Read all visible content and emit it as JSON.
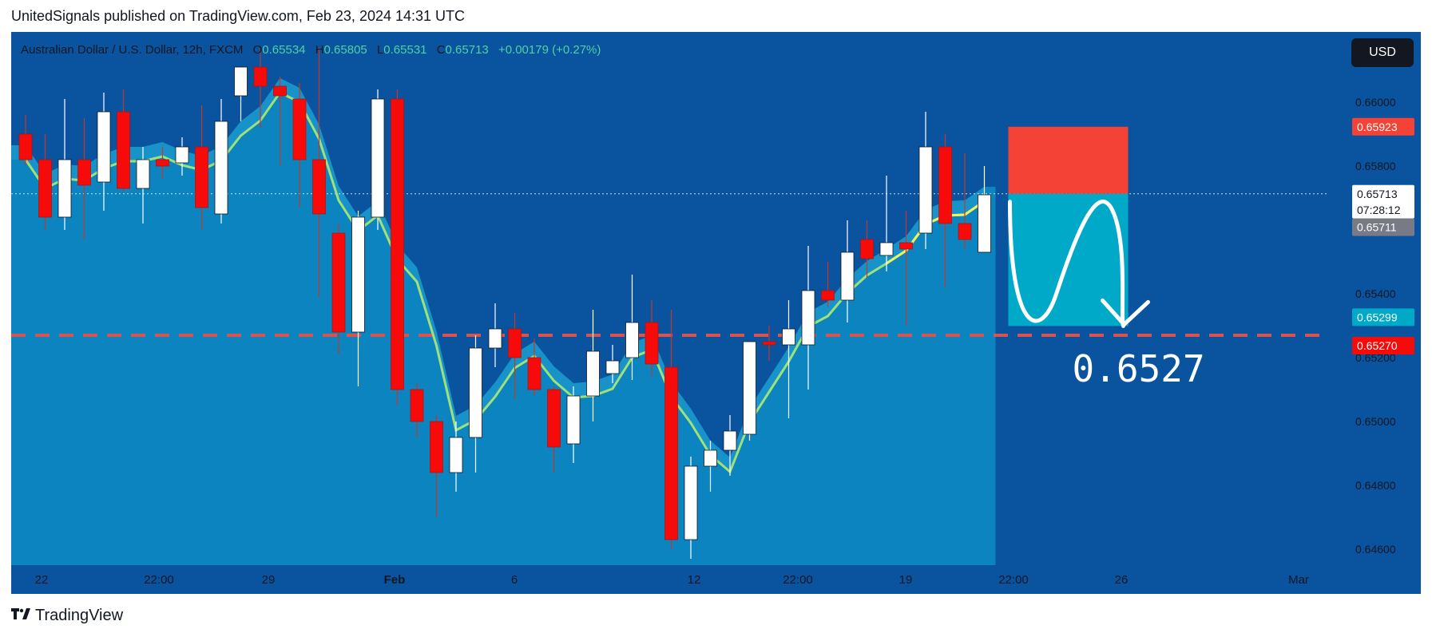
{
  "header": {
    "text": "UnitedSignals published on TradingView.com, Feb 23, 2024 14:31 UTC"
  },
  "legend": {
    "symbol": "Australian Dollar / U.S. Dollar, 12h, FXCM",
    "o_label": "O",
    "o_value": "0.65534",
    "h_label": "H",
    "h_value": "0.65805",
    "l_label": "L",
    "l_value": "0.65531",
    "c_label": "C",
    "c_value": "0.65713",
    "change": "+0.00179 (+0.27%)"
  },
  "currency_badge": "USD",
  "footer": {
    "brand": "TradingView"
  },
  "annotation": {
    "target_text": "0.6527"
  },
  "colors": {
    "background": "#0a539e",
    "area_fill": "#0b84bf",
    "band_fill": "#1b97cc",
    "up_candle": "#ffffff",
    "down_candle": "#f70a0a",
    "ma_line": "#9ee07a",
    "ma_line_recent": "#f2f25a",
    "stop_zone": "#f44236",
    "target_zone": "#00a9c8",
    "dashed_level": "#d9534f"
  },
  "chart_data": {
    "type": "candlestick",
    "ylim": [
      0.6455,
      0.6622
    ],
    "y_ticks": [
      "0.66000",
      "0.65800",
      "0.65400",
      "0.65200",
      "0.65000",
      "0.64800",
      "0.64600"
    ],
    "x_ticks": [
      "22",
      "22:00",
      "29",
      "Feb",
      "6",
      "12",
      "22:00",
      "19",
      "22:00",
      "26",
      "Mar"
    ],
    "price_labels": [
      {
        "text": "0.65923",
        "value": 0.65923,
        "color": "#f44236"
      },
      {
        "text": "0.65713",
        "value": 0.65713,
        "color": "#ffffff",
        "sub": "07:28:12"
      },
      {
        "text": "0.65711",
        "value": 0.65711,
        "color": "#787b86"
      },
      {
        "text": "0.65299",
        "value": 0.65299,
        "color": "#00a9c8"
      },
      {
        "text": "0.65270",
        "value": 0.6527,
        "color": "#f70a0a"
      }
    ],
    "current_price": 0.65713,
    "dashed_level": 0.6527,
    "position": {
      "entry": 0.65713,
      "stop": 0.65923,
      "target": 0.65299
    },
    "candles": [
      [
        0.659,
        0.6596,
        0.658,
        0.6582
      ],
      [
        0.6582,
        0.659,
        0.656,
        0.6564
      ],
      [
        0.6564,
        0.6601,
        0.656,
        0.6582
      ],
      [
        0.6582,
        0.6595,
        0.6557,
        0.6574
      ],
      [
        0.6575,
        0.6603,
        0.6566,
        0.6597
      ],
      [
        0.6597,
        0.6604,
        0.6572,
        0.6573
      ],
      [
        0.6573,
        0.6586,
        0.6562,
        0.6582
      ],
      [
        0.6582,
        0.6586,
        0.6576,
        0.658
      ],
      [
        0.6581,
        0.6589,
        0.6577,
        0.6586
      ],
      [
        0.6586,
        0.6599,
        0.656,
        0.6567
      ],
      [
        0.6565,
        0.6601,
        0.6562,
        0.6594
      ],
      [
        0.6602,
        0.661,
        0.6594,
        0.6611
      ],
      [
        0.6611,
        0.6617,
        0.6592,
        0.6605
      ],
      [
        0.6605,
        0.6608,
        0.658,
        0.6602
      ],
      [
        0.6601,
        0.6606,
        0.6567,
        0.6582
      ],
      [
        0.6582,
        0.6617,
        0.6539,
        0.6565
      ],
      [
        0.6559,
        0.6562,
        0.6521,
        0.6528
      ],
      [
        0.6528,
        0.6566,
        0.6511,
        0.6564
      ],
      [
        0.6564,
        0.6604,
        0.656,
        0.6601
      ],
      [
        0.6601,
        0.6604,
        0.6505,
        0.651
      ],
      [
        0.651,
        0.6512,
        0.6495,
        0.65
      ],
      [
        0.65,
        0.6502,
        0.647,
        0.6484
      ],
      [
        0.6484,
        0.65,
        0.6478,
        0.6495
      ],
      [
        0.6495,
        0.6527,
        0.6484,
        0.6523
      ],
      [
        0.6523,
        0.6537,
        0.6517,
        0.6529
      ],
      [
        0.6529,
        0.6534,
        0.6507,
        0.652
      ],
      [
        0.652,
        0.6526,
        0.6508,
        0.651
      ],
      [
        0.651,
        0.6511,
        0.6484,
        0.6492
      ],
      [
        0.6493,
        0.6511,
        0.6487,
        0.6508
      ],
      [
        0.6508,
        0.6535,
        0.65,
        0.6522
      ],
      [
        0.6515,
        0.6524,
        0.6512,
        0.6519
      ],
      [
        0.652,
        0.6546,
        0.6513,
        0.6531
      ],
      [
        0.6531,
        0.6538,
        0.6514,
        0.6518
      ],
      [
        0.6517,
        0.6535,
        0.646,
        0.6463
      ],
      [
        0.6463,
        0.6489,
        0.6457,
        0.6486
      ],
      [
        0.6486,
        0.6494,
        0.6478,
        0.6491
      ],
      [
        0.6491,
        0.6502,
        0.6483,
        0.6497
      ],
      [
        0.6496,
        0.6524,
        0.6494,
        0.6525
      ],
      [
        0.6525,
        0.653,
        0.6519,
        0.6524
      ],
      [
        0.6524,
        0.6538,
        0.6501,
        0.6529
      ],
      [
        0.6524,
        0.6555,
        0.651,
        0.6541
      ],
      [
        0.6541,
        0.655,
        0.6536,
        0.6538
      ],
      [
        0.6538,
        0.6563,
        0.6531,
        0.6553
      ],
      [
        0.6557,
        0.6563,
        0.6545,
        0.6551
      ],
      [
        0.6552,
        0.6577,
        0.6547,
        0.6556
      ],
      [
        0.6556,
        0.6566,
        0.653,
        0.6554
      ],
      [
        0.6559,
        0.6597,
        0.6554,
        0.6586
      ],
      [
        0.6586,
        0.659,
        0.6542,
        0.6562
      ],
      [
        0.6562,
        0.6584,
        0.6554,
        0.6557
      ],
      [
        0.6553,
        0.658,
        0.6553,
        0.6571
      ]
    ]
  }
}
